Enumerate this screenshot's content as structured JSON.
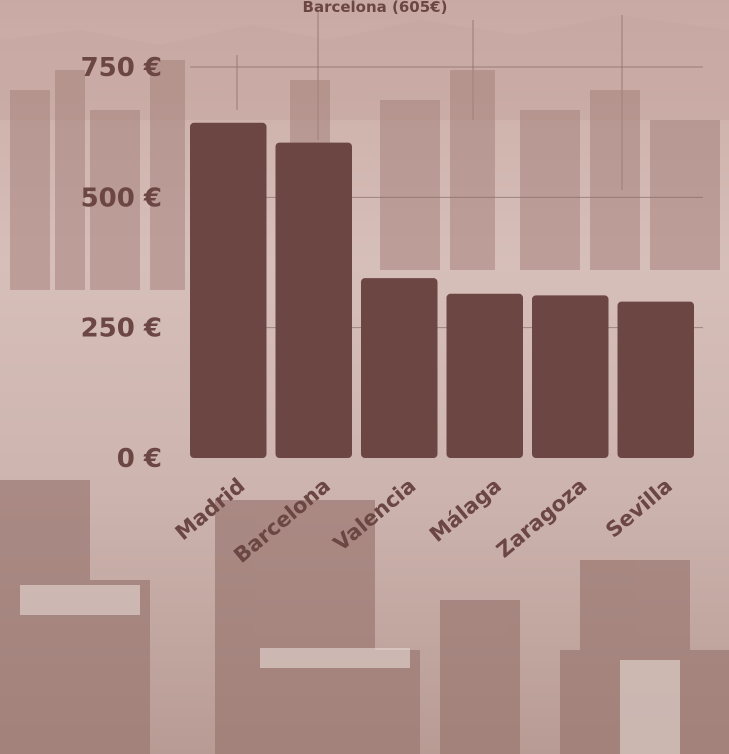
{
  "header": {
    "note": "Barcelona (605€)"
  },
  "chart_data": {
    "type": "bar",
    "categories": [
      "Madrid",
      "Barcelona",
      "Valencia",
      "Málaga",
      "Zaragoza",
      "Sevilla"
    ],
    "values": [
      643,
      605,
      345,
      315,
      312,
      300
    ],
    "ylim": [
      0,
      750
    ],
    "yticks": [
      0,
      250,
      500,
      750
    ],
    "ytick_labels": [
      "0 €",
      "250 €",
      "500 €",
      "750 €"
    ],
    "grid": true,
    "bar_color": "#6b4642",
    "label_color": "#6b4642",
    "gridline_color": "#8a6b66"
  }
}
